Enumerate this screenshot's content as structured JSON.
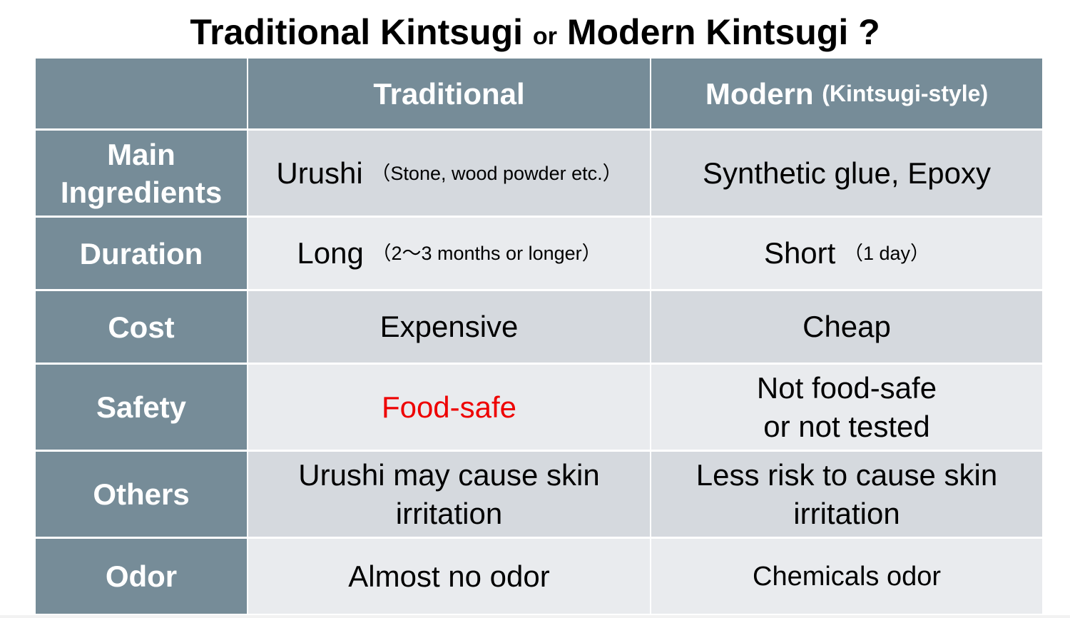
{
  "title": {
    "part1": "Traditional Kintsugi",
    "connector": "or",
    "part2": "Modern Kintsugi ?"
  },
  "table": {
    "headers": {
      "traditional": "Traditional",
      "modern": "Modern",
      "modern_sub": "(Kintsugi-style)"
    },
    "rows": [
      {
        "label": "Main Ingredients",
        "traditional": "Urushi",
        "traditional_note": "（Stone, wood powder etc.）",
        "modern": "Synthetic glue, Epoxy",
        "modern_note": ""
      },
      {
        "label": "Duration",
        "traditional": "Long",
        "traditional_note": "（2～3 months or longer）",
        "modern": "Short",
        "modern_note": "（1 day）"
      },
      {
        "label": "Cost",
        "traditional": "Expensive",
        "traditional_note": "",
        "modern": "Cheap",
        "modern_note": ""
      },
      {
        "label": "Safety",
        "traditional": "Food-safe",
        "traditional_note": "",
        "modern": "Not food-safe or not tested",
        "modern_note": ""
      },
      {
        "label": "Others",
        "traditional": "Urushi may cause skin irritation",
        "traditional_note": "",
        "modern": "Less risk to cause skin irritation",
        "modern_note": ""
      },
      {
        "label": "Odor",
        "traditional": "Almost no odor",
        "traditional_note": "",
        "modern": "Chemicals odor",
        "modern_note": ""
      }
    ]
  },
  "colors": {
    "header_bg": "#768c98",
    "row_dark": "#d5d9de",
    "row_light": "#e9ebee",
    "highlight": "#ee0000"
  }
}
